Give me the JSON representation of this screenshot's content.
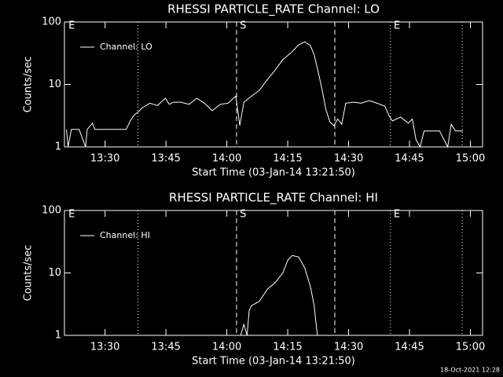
{
  "chart_data": [
    {
      "type": "line",
      "title": "RHESSI PARTICLE_RATE Channel: LO",
      "xlabel": "Start Time (03-Jan-14 13:21:50)",
      "ylabel": "Counts/sec",
      "x": [
        800.5,
        800.9,
        801.7,
        802.7,
        803.6,
        805.2,
        805.6,
        806.9,
        807.5,
        809.4,
        811.4,
        813.3,
        815.2,
        816.2,
        817.1,
        818.1,
        819.1,
        821.0,
        822.9,
        824.9,
        825.8,
        826.8,
        828.7,
        830.7,
        832.6,
        834.5,
        836.4,
        838.4,
        840.3,
        842.2,
        843.2,
        844.2,
        846.1,
        848.0,
        850.0,
        851.9,
        853.8,
        855.8,
        857.7,
        859.2,
        860.6,
        861.5,
        862.5,
        863.5,
        864.4,
        865.4,
        866.4,
        867.3,
        868.3,
        869.3,
        871.2,
        873.1,
        875.1,
        877.0,
        878.9,
        879.9,
        880.8,
        882.8,
        884.7,
        885.7,
        886.6,
        887.6,
        888.6,
        890.5,
        892.4,
        894.4,
        895.3,
        896.3,
        898.2
      ],
      "series": [
        {
          "name": "Channel: LO",
          "color": "#ffffff",
          "values": [
            1.9,
            1.0,
            1.9,
            1.9,
            1.9,
            1.0,
            1.9,
            2.4,
            1.9,
            1.9,
            1.9,
            1.9,
            1.9,
            2.6,
            3.2,
            3.6,
            4.2,
            5.0,
            4.6,
            6.0,
            4.8,
            5.2,
            5.2,
            4.8,
            6.0,
            5.0,
            3.8,
            4.8,
            5.0,
            6.5,
            2.2,
            5.2,
            6.5,
            8,
            12,
            17,
            25,
            32,
            43,
            48,
            42,
            30,
            16,
            8,
            4,
            2.5,
            2.2,
            2.8,
            2.3,
            5.0,
            5.2,
            5.0,
            5.5,
            5.0,
            4.5,
            3.2,
            2.6,
            3.0,
            2.4,
            2.8,
            1.3,
            1.0,
            1.8,
            1.8,
            1.8,
            1.0,
            2.3,
            1.8,
            1.8
          ]
        }
      ],
      "xlim": [
        800,
        903
      ],
      "ylim": [
        1,
        100
      ],
      "log_y": true,
      "xticks": [
        {
          "value": 810,
          "label": "13:30"
        },
        {
          "value": 825,
          "label": "13:45"
        },
        {
          "value": 840,
          "label": "14:00"
        },
        {
          "value": 855,
          "label": "14:15"
        },
        {
          "value": 870,
          "label": "14:30"
        },
        {
          "value": 885,
          "label": "14:45"
        },
        {
          "value": 900,
          "label": "15:00"
        }
      ],
      "yticks": [
        1,
        10,
        100
      ],
      "markers": [
        {
          "x": 818.1,
          "style": "dotted"
        },
        {
          "x": 842.4,
          "style": "dashed"
        },
        {
          "x": 866.6,
          "style": "dashed"
        },
        {
          "x": 880.3,
          "style": "dotted"
        },
        {
          "x": 898.0,
          "style": "dotted"
        }
      ],
      "annotations": [
        {
          "text": "E",
          "x": 800.8
        },
        {
          "text": "S",
          "x": 843.0
        },
        {
          "text": "E",
          "x": 880.9
        }
      ],
      "legend": "upper left"
    },
    {
      "type": "line",
      "title": "RHESSI PARTICLE_RATE Channel: HI",
      "xlabel": "Start Time (03-Jan-14 13:21:50)",
      "ylabel": "Counts/sec",
      "x": [
        843.4,
        844.2,
        845.0,
        845.5,
        846.1,
        848.0,
        850.0,
        851.9,
        853.8,
        855.0,
        856.1,
        857.7,
        859.2,
        860.6,
        861.5,
        862.3
      ],
      "series": [
        {
          "name": "Channel: HI",
          "color": "#ffffff",
          "values": [
            1.0,
            1.5,
            1.0,
            2.5,
            3.0,
            3.5,
            5.5,
            7,
            10,
            16,
            19,
            18,
            12,
            6,
            3,
            1.0
          ]
        }
      ],
      "xlim": [
        800,
        903
      ],
      "ylim": [
        1,
        100
      ],
      "log_y": true,
      "xticks": [
        {
          "value": 810,
          "label": "13:30"
        },
        {
          "value": 825,
          "label": "13:45"
        },
        {
          "value": 840,
          "label": "14:00"
        },
        {
          "value": 855,
          "label": "14:15"
        },
        {
          "value": 870,
          "label": "14:30"
        },
        {
          "value": 885,
          "label": "14:45"
        },
        {
          "value": 900,
          "label": "15:00"
        }
      ],
      "yticks": [
        1,
        10,
        100
      ],
      "markers": [
        {
          "x": 818.1,
          "style": "dotted"
        },
        {
          "x": 842.4,
          "style": "dashed"
        },
        {
          "x": 866.6,
          "style": "dashed"
        },
        {
          "x": 880.3,
          "style": "dotted"
        },
        {
          "x": 898.0,
          "style": "dotted"
        }
      ],
      "annotations": [
        {
          "text": "E",
          "x": 800.8
        },
        {
          "text": "S",
          "x": 843.0
        },
        {
          "text": "E",
          "x": 880.9
        }
      ],
      "legend": "upper left"
    }
  ],
  "footer": "18-Oct-2021 12:28"
}
